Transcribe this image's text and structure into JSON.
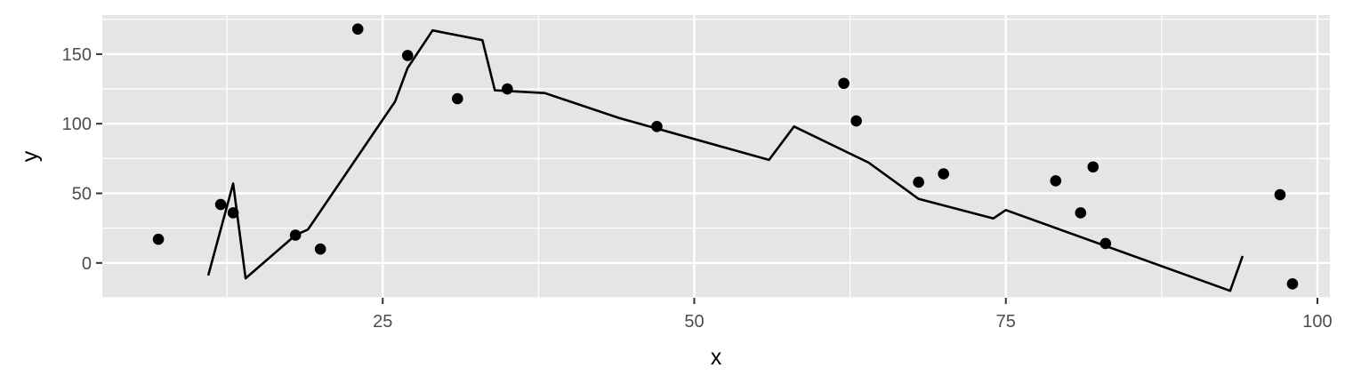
{
  "chart_data": {
    "type": "scatter",
    "title": "",
    "xlabel": "x",
    "ylabel": "y",
    "xlim": [
      2.5,
      101
    ],
    "ylim": [
      -25,
      178
    ],
    "x_ticks": [
      25,
      50,
      75,
      100
    ],
    "x_tick_labels": [
      "25",
      "50",
      "75",
      "100"
    ],
    "y_ticks": [
      0,
      50,
      100,
      150
    ],
    "y_tick_labels": [
      "0",
      "50",
      "100",
      "150"
    ],
    "grid": true,
    "legend": "none",
    "colors": {
      "panel": "#e5e5e5",
      "grid": "#ffffff",
      "marks": "#000000",
      "tick_text": "#4d4d4d"
    },
    "points": [
      {
        "x": 7,
        "y": 17
      },
      {
        "x": 12,
        "y": 42
      },
      {
        "x": 13,
        "y": 36
      },
      {
        "x": 18,
        "y": 20
      },
      {
        "x": 20,
        "y": 10
      },
      {
        "x": 23,
        "y": 168
      },
      {
        "x": 27,
        "y": 149
      },
      {
        "x": 31,
        "y": 118
      },
      {
        "x": 35,
        "y": 125
      },
      {
        "x": 47,
        "y": 98
      },
      {
        "x": 62,
        "y": 129
      },
      {
        "x": 63,
        "y": 102
      },
      {
        "x": 68,
        "y": 58
      },
      {
        "x": 70,
        "y": 64
      },
      {
        "x": 79,
        "y": 59
      },
      {
        "x": 81,
        "y": 36
      },
      {
        "x": 82,
        "y": 69
      },
      {
        "x": 83,
        "y": 14
      },
      {
        "x": 97,
        "y": 49
      },
      {
        "x": 98,
        "y": -15
      }
    ],
    "line": [
      {
        "x": 11,
        "y": -9
      },
      {
        "x": 13,
        "y": 57
      },
      {
        "x": 14,
        "y": -11
      },
      {
        "x": 18,
        "y": 20
      },
      {
        "x": 19,
        "y": 24
      },
      {
        "x": 26,
        "y": 116
      },
      {
        "x": 27,
        "y": 140
      },
      {
        "x": 29,
        "y": 167
      },
      {
        "x": 33,
        "y": 160
      },
      {
        "x": 34,
        "y": 124
      },
      {
        "x": 38,
        "y": 122
      },
      {
        "x": 44,
        "y": 104
      },
      {
        "x": 56,
        "y": 74
      },
      {
        "x": 58,
        "y": 98
      },
      {
        "x": 64,
        "y": 72
      },
      {
        "x": 68,
        "y": 46
      },
      {
        "x": 74,
        "y": 32
      },
      {
        "x": 75,
        "y": 38
      },
      {
        "x": 93,
        "y": -20
      },
      {
        "x": 94,
        "y": 5
      }
    ]
  }
}
